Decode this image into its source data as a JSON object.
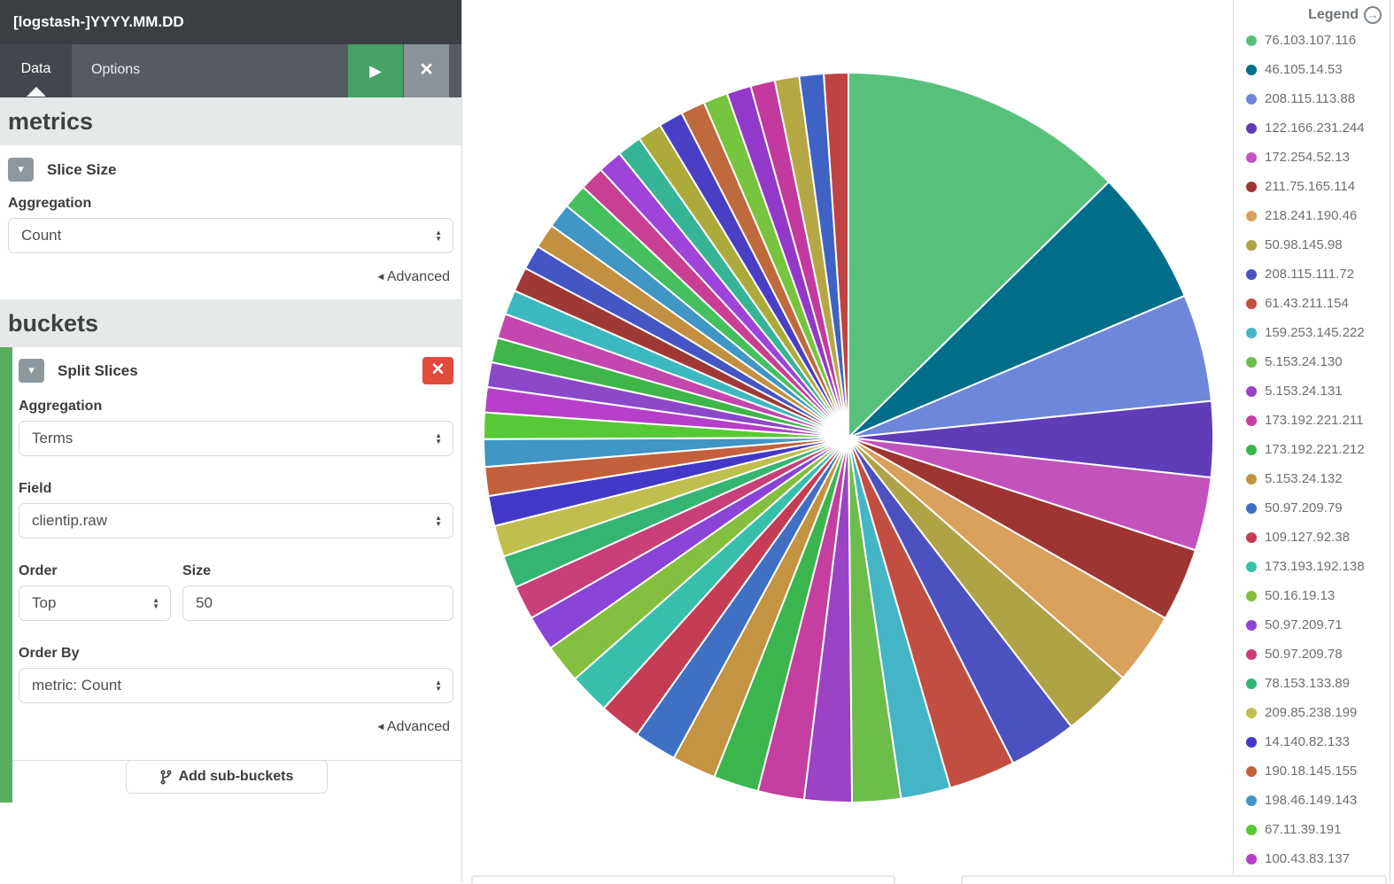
{
  "window": {
    "title": "[logstash-]YYYY.MM.DD"
  },
  "tabs": {
    "data": "Data",
    "options": "Options"
  },
  "toolbar": {
    "play_icon": "▶",
    "close_icon": "×"
  },
  "metrics": {
    "heading": "metrics",
    "slice_size_label": "Slice Size",
    "aggregation_label": "Aggregation",
    "aggregation_value": "Count",
    "advanced_label": "Advanced"
  },
  "buckets": {
    "heading": "buckets",
    "split_slices_label": "Split Slices",
    "aggregation_label": "Aggregation",
    "aggregation_value": "Terms",
    "field_label": "Field",
    "field_value": "clientip.raw",
    "order_label": "Order",
    "order_value": "Top",
    "size_label": "Size",
    "size_value": "50",
    "order_by_label": "Order By",
    "order_by_value": "metric: Count",
    "advanced_label": "Advanced",
    "add_sub_buckets_label": "Add sub-buckets"
  },
  "legend": {
    "title": "Legend"
  },
  "chart_data": {
    "type": "pie",
    "field": "clientip.raw",
    "metric": "Count",
    "order": "Top 50 by metric: Count",
    "legend_position": "right",
    "start_angle_deg": 0,
    "direction": "clockwise",
    "series": [
      {
        "label": "76.103.107.116",
        "color": "#57c17b",
        "percent": 12.65
      },
      {
        "label": "46.105.14.53",
        "color": "#006e8a",
        "percent": 6.0
      },
      {
        "label": "208.115.113.88",
        "color": "#6f87d8",
        "percent": 4.75
      },
      {
        "label": "122.166.231.244",
        "color": "#5f3cb8",
        "percent": 3.35
      },
      {
        "label": "172.254.52.13",
        "color": "#c253bc",
        "percent": 3.25
      },
      {
        "label": "211.75.165.114",
        "color": "#9e3533",
        "percent": 3.25
      },
      {
        "label": "218.241.190.46",
        "color": "#daa05d",
        "percent": 3.2
      },
      {
        "label": "50.98.145.98",
        "color": "#b0a345",
        "percent": 3.1
      },
      {
        "label": "208.115.111.72",
        "color": "#4c51c0",
        "percent": 3.0
      },
      {
        "label": "61.43.211.154",
        "color": "#c24e41",
        "percent": 2.95
      },
      {
        "label": "159.253.145.222",
        "color": "#44b5c5",
        "percent": 2.2
      },
      {
        "label": "5.153.24.130",
        "color": "#6dbd4a",
        "percent": 2.15
      },
      {
        "label": "5.153.24.131",
        "color": "#9a43c5",
        "percent": 2.1
      },
      {
        "label": "173.192.221.211",
        "color": "#c43fa0",
        "percent": 2.05
      },
      {
        "label": "173.192.221.212",
        "color": "#3bb54e",
        "percent": 2.0
      },
      {
        "label": "5.153.24.132",
        "color": "#c39441",
        "percent": 1.95
      },
      {
        "label": "50.97.209.79",
        "color": "#4070c4",
        "percent": 1.9
      },
      {
        "label": "109.127.92.38",
        "color": "#c43d55",
        "percent": 1.85
      },
      {
        "label": "173.193.192.138",
        "color": "#38bfac",
        "percent": 1.8
      },
      {
        "label": "50.16.19.13",
        "color": "#85bf3f",
        "percent": 1.72
      },
      {
        "label": "50.97.209.71",
        "color": "#8a44d8",
        "percent": 1.56
      },
      {
        "label": "50.97.209.78",
        "color": "#c93f78",
        "percent": 1.5
      },
      {
        "label": "78.153.133.89",
        "color": "#35b573",
        "percent": 1.44
      },
      {
        "label": "209.85.238.199",
        "color": "#bfbf4d",
        "percent": 1.39
      },
      {
        "label": "14.140.82.133",
        "color": "#4438c9",
        "percent": 1.33
      },
      {
        "label": "190.18.145.155",
        "color": "#c4613c",
        "percent": 1.28
      },
      {
        "label": "198.46.149.143",
        "color": "#4096c4",
        "percent": 1.22
      },
      {
        "label": "67.11.39.191",
        "color": "#58c936",
        "percent": 1.17
      },
      {
        "label": "100.43.83.137",
        "color": "#b53fc9",
        "percent": 1.11
      }
    ],
    "unlabeled_slices": [
      {
        "color": "#8b49c9",
        "percent": 1.1
      },
      {
        "color": "#3fb54a",
        "percent": 1.1
      },
      {
        "color": "#c446ae",
        "percent": 1.09
      },
      {
        "color": "#3cb8bf",
        "percent": 1.09
      },
      {
        "color": "#a03936",
        "percent": 1.09
      },
      {
        "color": "#4455c4",
        "percent": 1.09
      },
      {
        "color": "#c29040",
        "percent": 1.09
      },
      {
        "color": "#4096c4",
        "percent": 1.09
      },
      {
        "color": "#46bf5e",
        "percent": 1.09
      },
      {
        "color": "#c93f93",
        "percent": 1.08
      },
      {
        "color": "#9e44d8",
        "percent": 1.08
      },
      {
        "color": "#36b596",
        "percent": 1.08
      },
      {
        "color": "#adaa3c",
        "percent": 1.08
      },
      {
        "color": "#4a3fc4",
        "percent": 1.08
      },
      {
        "color": "#bf6a3c",
        "percent": 1.08
      },
      {
        "color": "#77c43f",
        "percent": 1.08
      },
      {
        "color": "#9339c9",
        "percent": 1.08
      },
      {
        "color": "#c4399e",
        "percent": 1.08
      },
      {
        "color": "#b5a844",
        "percent": 1.08
      },
      {
        "color": "#3f63c4",
        "percent": 1.08
      },
      {
        "color": "#bf4343",
        "percent": 1.08
      }
    ]
  }
}
